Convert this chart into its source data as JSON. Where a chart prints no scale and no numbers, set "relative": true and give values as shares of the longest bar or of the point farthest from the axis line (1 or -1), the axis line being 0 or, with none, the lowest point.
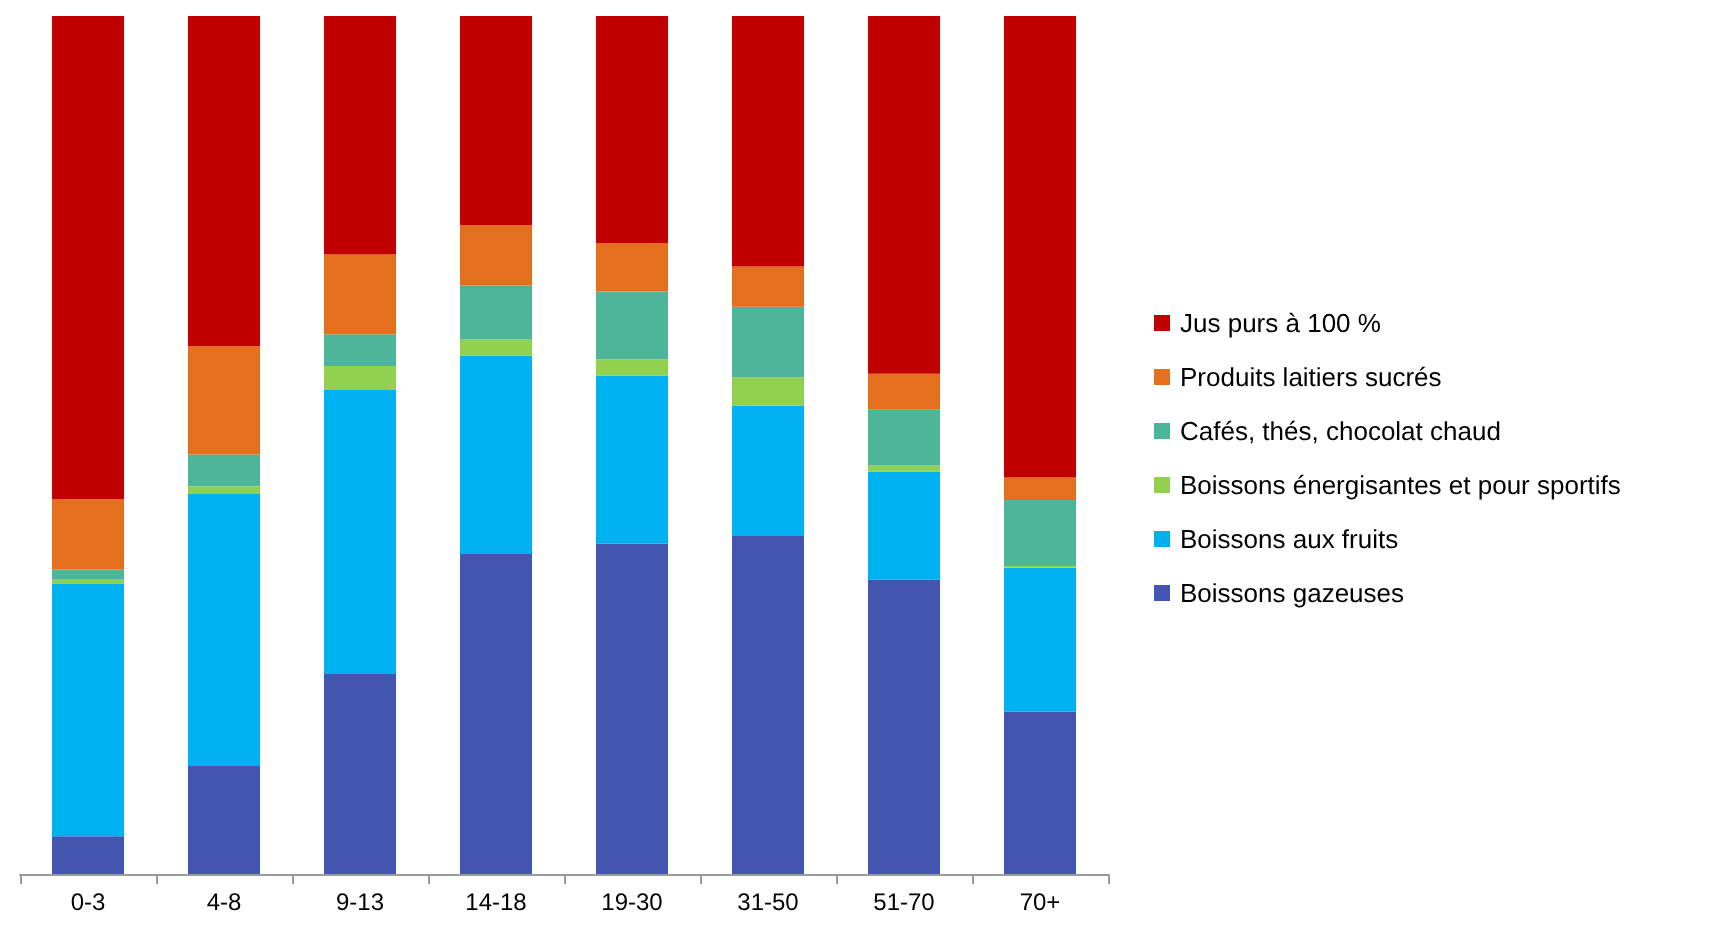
{
  "chart_data": {
    "type": "bar",
    "stacked": true,
    "relative": true,
    "legend": "right",
    "categories": [
      "0-3",
      "4-8",
      "9-13",
      "14-18",
      "19-30",
      "31-50",
      "51-70",
      "70+"
    ],
    "series": [
      {
        "name": "Boissons gazeuses",
        "color": "#4356b0",
        "values": [
          0.044,
          0.126,
          0.233,
          0.373,
          0.385,
          0.394,
          0.343,
          0.189
        ]
      },
      {
        "name": "Boissons aux fruits",
        "color": "#00b0f0",
        "values": [
          0.294,
          0.317,
          0.331,
          0.231,
          0.196,
          0.152,
          0.126,
          0.168
        ]
      },
      {
        "name": "Boissons énergisantes et pour sportifs",
        "color": "#92d050",
        "values": [
          0.005,
          0.009,
          0.028,
          0.019,
          0.019,
          0.033,
          0.007,
          0.002
        ]
      },
      {
        "name": "Cafés, thés, chocolat chaud",
        "color": "#4db69a",
        "values": [
          0.012,
          0.037,
          0.037,
          0.063,
          0.079,
          0.082,
          0.065,
          0.077
        ]
      },
      {
        "name": "Produits laitiers sucrés",
        "color": "#e46f1c",
        "values": [
          0.082,
          0.126,
          0.093,
          0.07,
          0.056,
          0.047,
          0.042,
          0.026
        ]
      },
      {
        "name": "Jus purs à 100 %",
        "color": "#c00000",
        "values": [
          0.563,
          0.385,
          0.278,
          0.244,
          0.265,
          0.292,
          0.417,
          0.538
        ]
      }
    ]
  }
}
